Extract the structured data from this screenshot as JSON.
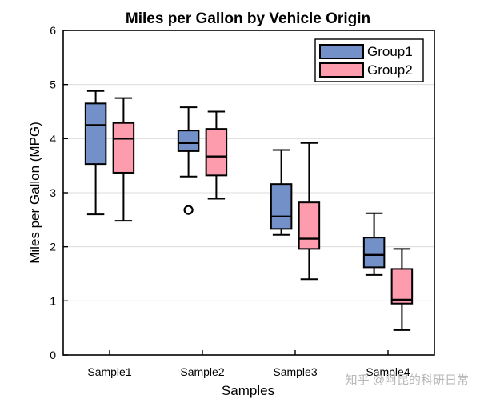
{
  "chart_data": {
    "type": "box",
    "title": "Miles per Gallon by Vehicle Origin",
    "xlabel": "Samples",
    "ylabel": "Miles per Gallon (MPG)",
    "ylim": [
      0,
      6
    ],
    "yticks": [
      0,
      1,
      2,
      3,
      4,
      5,
      6
    ],
    "categories": [
      "Sample1",
      "Sample2",
      "Sample3",
      "Sample4"
    ],
    "grid": "horizontal",
    "legend_position": "top-right",
    "series": [
      {
        "name": "Group1",
        "color": "#7391c8",
        "boxes": [
          {
            "whisker_low": 2.6,
            "q1": 3.53,
            "median": 4.25,
            "q3": 4.65,
            "whisker_high": 4.88,
            "outliers": []
          },
          {
            "whisker_low": 3.3,
            "q1": 3.77,
            "median": 3.92,
            "q3": 4.15,
            "whisker_high": 4.58,
            "outliers": [
              2.68
            ]
          },
          {
            "whisker_low": 2.22,
            "q1": 2.33,
            "median": 2.56,
            "q3": 3.16,
            "whisker_high": 3.79,
            "outliers": []
          },
          {
            "whisker_low": 1.48,
            "q1": 1.62,
            "median": 1.85,
            "q3": 2.17,
            "whisker_high": 2.62,
            "outliers": []
          }
        ]
      },
      {
        "name": "Group2",
        "color": "#fc9cac",
        "boxes": [
          {
            "whisker_low": 2.48,
            "q1": 3.37,
            "median": 4.0,
            "q3": 4.29,
            "whisker_high": 4.75,
            "outliers": []
          },
          {
            "whisker_low": 2.89,
            "q1": 3.32,
            "median": 3.67,
            "q3": 4.18,
            "whisker_high": 4.5,
            "outliers": []
          },
          {
            "whisker_low": 1.4,
            "q1": 1.96,
            "median": 2.15,
            "q3": 2.82,
            "whisker_high": 3.92,
            "outliers": []
          },
          {
            "whisker_low": 0.46,
            "q1": 0.95,
            "median": 1.02,
            "q3": 1.59,
            "whisker_high": 1.96,
            "outliers": []
          }
        ]
      }
    ]
  },
  "watermark": "知乎 @阿昆的科研日常"
}
